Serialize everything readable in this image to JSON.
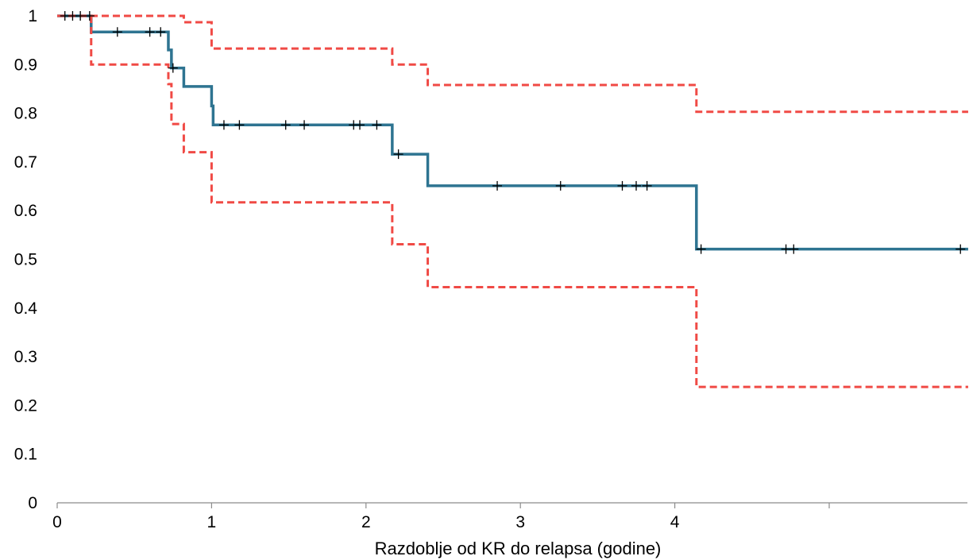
{
  "chart_data": {
    "type": "line",
    "title": "",
    "xlabel": "Razdoblje od KR do relapsa (godine)",
    "ylabel": "",
    "xlim": [
      0,
      5.95
    ],
    "ylim": [
      0,
      1
    ],
    "x_ticks": [
      0,
      1,
      2,
      3,
      4,
      5
    ],
    "x_tick_labels": [
      "0",
      "1",
      "2",
      "3",
      "4",
      ""
    ],
    "y_ticks": [
      0,
      0.1,
      0.2,
      0.3,
      0.4,
      0.5,
      0.6,
      0.7,
      0.8,
      0.9,
      1
    ],
    "y_tick_labels": [
      "0",
      "0.1",
      "0.2",
      "0.3",
      "0.4",
      "0.5",
      "0.6",
      "0.7",
      "0.8",
      "0.9",
      "1"
    ],
    "grid": false,
    "legend": "none",
    "colors": {
      "survival": "#2e7491",
      "ci": "#f04a45",
      "censor": "#000000"
    },
    "series": [
      {
        "kind": "survival",
        "step_points": [
          [
            0,
            1
          ],
          [
            0.22,
            0.967
          ],
          [
            0.72,
            0.93
          ],
          [
            0.74,
            0.893
          ],
          [
            0.82,
            0.855
          ],
          [
            1.0,
            0.815
          ],
          [
            1.01,
            0.776
          ],
          [
            2.17,
            0.716
          ],
          [
            2.4,
            0.651
          ],
          [
            4.14,
            0.521
          ],
          [
            5.9,
            0.521
          ]
        ],
        "censored": [
          [
            0.05,
            1
          ],
          [
            0.1,
            1
          ],
          [
            0.15,
            1
          ],
          [
            0.21,
            1
          ],
          [
            0.39,
            0.967
          ],
          [
            0.6,
            0.967
          ],
          [
            0.67,
            0.967
          ],
          [
            0.75,
            0.893
          ],
          [
            1.08,
            0.776
          ],
          [
            1.18,
            0.776
          ],
          [
            1.48,
            0.776
          ],
          [
            1.6,
            0.776
          ],
          [
            1.92,
            0.776
          ],
          [
            1.96,
            0.776
          ],
          [
            2.07,
            0.776
          ],
          [
            2.21,
            0.716
          ],
          [
            2.85,
            0.651
          ],
          [
            3.26,
            0.651
          ],
          [
            3.66,
            0.651
          ],
          [
            3.75,
            0.651
          ],
          [
            3.82,
            0.651
          ],
          [
            4.17,
            0.521
          ],
          [
            4.72,
            0.521
          ],
          [
            4.77,
            0.521
          ],
          [
            5.85,
            0.521
          ]
        ]
      },
      {
        "kind": "ci-upper",
        "step_points": [
          [
            0,
            1
          ],
          [
            0.82,
            0.987
          ],
          [
            1.0,
            0.933
          ],
          [
            2.17,
            0.9
          ],
          [
            2.4,
            0.858
          ],
          [
            4.14,
            0.803
          ],
          [
            5.9,
            0.803
          ]
        ]
      },
      {
        "kind": "ci-lower",
        "step_points": [
          [
            0.22,
            1
          ],
          [
            0.22,
            0.9
          ],
          [
            0.72,
            0.86
          ],
          [
            0.74,
            0.778
          ],
          [
            0.82,
            0.72
          ],
          [
            1.0,
            0.617
          ],
          [
            2.17,
            0.531
          ],
          [
            2.4,
            0.443
          ],
          [
            4.14,
            0.238
          ],
          [
            5.9,
            0.238
          ]
        ]
      }
    ]
  }
}
